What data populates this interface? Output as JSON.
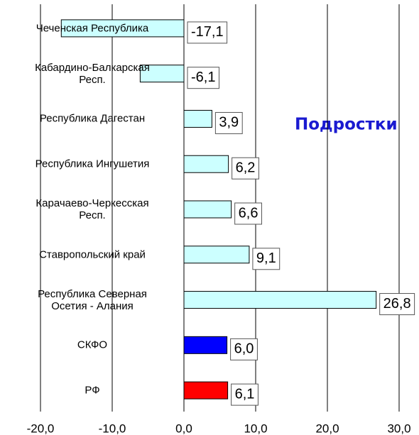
{
  "chart_data": {
    "type": "barh",
    "title": "Подростки",
    "categories": [
      "Чеченская Республика",
      "Кабардино-Балкарская\nРесп.",
      "Республика Дагестан",
      "Республика Ингушетия",
      "Карачаево-Черкесская\nРесп.",
      "Ставропольский край",
      "Республика Северная\nОсетия - Алания",
      "СКФО",
      "РФ"
    ],
    "values": [
      -17.1,
      -6.1,
      3.9,
      6.2,
      6.6,
      9.1,
      26.8,
      6.0,
      6.1
    ],
    "value_labels": [
      "-17,1",
      "-6,1",
      "3,9",
      "6,2",
      "6,6",
      "9,1",
      "26,8",
      "6,0",
      "6,1"
    ],
    "colors": [
      "#ccffff",
      "#ccffff",
      "#ccffff",
      "#ccffff",
      "#ccffff",
      "#ccffff",
      "#ccffff",
      "#0000ff",
      "#ff0000"
    ],
    "xlim": [
      -20,
      30
    ],
    "xticks": [
      {
        "value": -20,
        "label": "-20,0"
      },
      {
        "value": -10,
        "label": "-10,0"
      },
      {
        "value": 0,
        "label": "0,0"
      },
      {
        "value": 10,
        "label": "10,0"
      },
      {
        "value": 20,
        "label": "20,0"
      },
      {
        "value": 30,
        "label": "30,0"
      }
    ],
    "grid": true
  }
}
